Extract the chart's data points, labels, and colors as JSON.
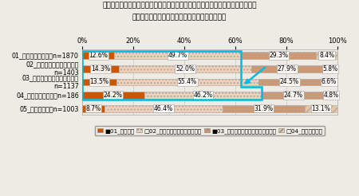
{
  "title_line1": "あなたは、企業が今後どのような人事管理の方针を持つべきであると思いますか",
  "title_line2": "賃金は働いた時間より成果に基づいて決めるべき",
  "categories": [
    "01_３００万円未満　n=1870",
    "02_３００～５００万円未満\nn=1403",
    "03_５００～１０００万円未満\nn=1137",
    "04_１０００万以上　n=186",
    "05_わからない　n=1003"
  ],
  "data": [
    [
      12.6,
      49.7,
      29.3,
      8.4
    ],
    [
      14.3,
      52.0,
      27.9,
      5.8
    ],
    [
      13.5,
      55.4,
      24.5,
      6.6
    ],
    [
      24.2,
      46.2,
      24.7,
      4.8
    ],
    [
      8.7,
      46.4,
      31.9,
      13.1
    ]
  ],
  "colors": [
    "#cc5500",
    "#f2d0b8",
    "#d4956a",
    "#e8c8a0"
  ],
  "hatches": [
    "",
    "....",
    "....",
    "////"
  ],
  "legend_labels": [
    "01_そう思う",
    "02_どちらかといえばそう思う",
    "03_どちらかといえばそう思わない",
    "04_そう思わない"
  ],
  "xlabel_ticks": [
    0,
    20,
    40,
    60,
    80,
    100
  ],
  "background": "#eeebe5",
  "bar_height": 0.52,
  "title_fontsize": 6.5,
  "label_fontsize": 5.5,
  "tick_fontsize": 6.0,
  "cat_fontsize": 5.8,
  "legend_fontsize": 5.2
}
